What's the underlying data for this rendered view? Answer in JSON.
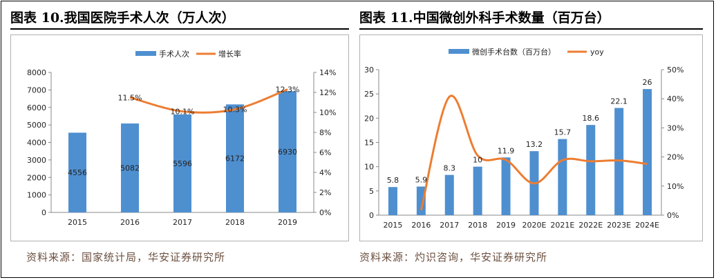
{
  "left": {
    "title": "图表 10.我国医院手术人次（万人次）",
    "source": "资料来源：国家统计局，华安证券研究所",
    "chart_data": {
      "type": "bar",
      "categories": [
        "2015",
        "2016",
        "2017",
        "2018",
        "2019"
      ],
      "series": [
        {
          "name": "手术人次",
          "kind": "bar",
          "axis": "left",
          "values": [
            4556,
            5082,
            5596,
            6172,
            6930
          ],
          "labels": [
            "4556",
            "5082",
            "5596",
            "6172",
            "6930"
          ]
        },
        {
          "name": "增长率",
          "kind": "line",
          "axis": "right",
          "values": [
            null,
            11.5,
            10.1,
            10.3,
            12.3
          ],
          "labels": [
            "",
            "11.5%",
            "10.1%",
            "10.3%",
            "12.3%"
          ]
        }
      ],
      "ylim": [
        0,
        8000
      ],
      "yticks": [
        "0",
        "1000",
        "2000",
        "3000",
        "4000",
        "5000",
        "6000",
        "7000",
        "8000"
      ],
      "y2lim": [
        0,
        14
      ],
      "y2ticks": [
        "0%",
        "2%",
        "4%",
        "6%",
        "8%",
        "10%",
        "12%",
        "14%"
      ],
      "legend_position": "top"
    }
  },
  "right": {
    "title": "图表 11.中国微创外科手术数量（百万台）",
    "source": "资料来源：灼识咨询，华安证券研究所",
    "chart_data": {
      "type": "bar",
      "categories": [
        "2015",
        "2016",
        "2017",
        "2018",
        "2019",
        "2020E",
        "2021E",
        "2022E",
        "2023E",
        "2024E"
      ],
      "series": [
        {
          "name": "微创手术台数（百万台）",
          "kind": "bar",
          "axis": "left",
          "values": [
            5.8,
            5.9,
            8.3,
            10,
            11.9,
            13.2,
            15.7,
            18.6,
            22.1,
            26
          ],
          "labels": [
            "5.8",
            "5.9",
            "8.3",
            "10",
            "11.9",
            "13.2",
            "15.7",
            "18.6",
            "22.1",
            "26"
          ]
        },
        {
          "name": "yoy",
          "kind": "line",
          "axis": "right",
          "values": [
            null,
            1.7,
            40.7,
            20.5,
            19.0,
            10.9,
            18.9,
            18.5,
            18.8,
            17.6
          ],
          "labels": []
        }
      ],
      "ylim": [
        0,
        30
      ],
      "yticks": [
        "0",
        "5",
        "10",
        "15",
        "20",
        "25",
        "30"
      ],
      "y2lim": [
        0,
        50
      ],
      "y2ticks": [
        "0%",
        "10%",
        "20%",
        "30%",
        "40%",
        "50%"
      ],
      "legend_position": "top"
    }
  },
  "colors": {
    "bar": "#4e8fd0",
    "line": "#ed7d31",
    "source_text": "#6b4f3f"
  }
}
